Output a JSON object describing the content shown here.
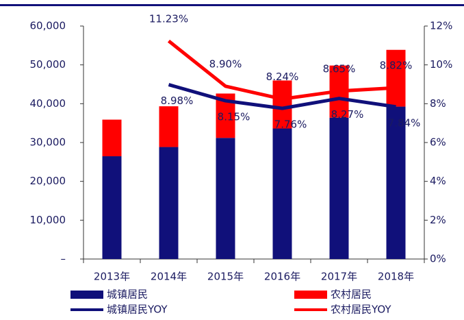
{
  "chart_data": {
    "type": "bar",
    "categories": [
      "2013年",
      "2014年",
      "2015年",
      "2016年",
      "2017年",
      "2018年"
    ],
    "series": [
      {
        "name": "城镇居民",
        "color": "#10107a",
        "values": [
          26467,
          28844,
          31195,
          33616,
          36396,
          39251
        ]
      },
      {
        "name": "农村居民",
        "color": "#ff0000",
        "values": [
          9430,
          10489,
          11422,
          12363,
          13432,
          14617
        ]
      },
      {
        "name": "城镇居民YOY",
        "color": "#10107a",
        "type": "line",
        "axis": "y2",
        "values": [
          null,
          8.98,
          8.15,
          7.76,
          8.27,
          7.84
        ],
        "value_labels": [
          null,
          "8.98%",
          "8.15%",
          "7.76%",
          "8.27%",
          "7.84%"
        ]
      },
      {
        "name": "农村居民YOY",
        "color": "#ff0000",
        "type": "line",
        "axis": "y2",
        "values": [
          null,
          11.23,
          8.9,
          8.24,
          8.65,
          8.82
        ],
        "value_labels": [
          null,
          "11.23%",
          "8.90%",
          "8.24%",
          "8.65%",
          "8.82%"
        ]
      }
    ],
    "stacked": true,
    "ylim": [
      0,
      60000
    ],
    "yticks": [
      {
        "value": 0,
        "label": "–"
      },
      {
        "value": 10000,
        "label": "10,000"
      },
      {
        "value": 20000,
        "label": "20,000"
      },
      {
        "value": 30000,
        "label": "30,000"
      },
      {
        "value": 40000,
        "label": "40,000"
      },
      {
        "value": 50000,
        "label": "50,000"
      },
      {
        "value": 60000,
        "label": "60,000"
      }
    ],
    "y2lim": [
      0,
      12
    ],
    "y2ticks": [
      {
        "value": 0,
        "label": "0%"
      },
      {
        "value": 2,
        "label": "2%"
      },
      {
        "value": 4,
        "label": "4%"
      },
      {
        "value": 6,
        "label": "6%"
      },
      {
        "value": 8,
        "label": "8%"
      },
      {
        "value": 10,
        "label": "10%"
      },
      {
        "value": 12,
        "label": "12%"
      }
    ],
    "legend": "bottom"
  }
}
